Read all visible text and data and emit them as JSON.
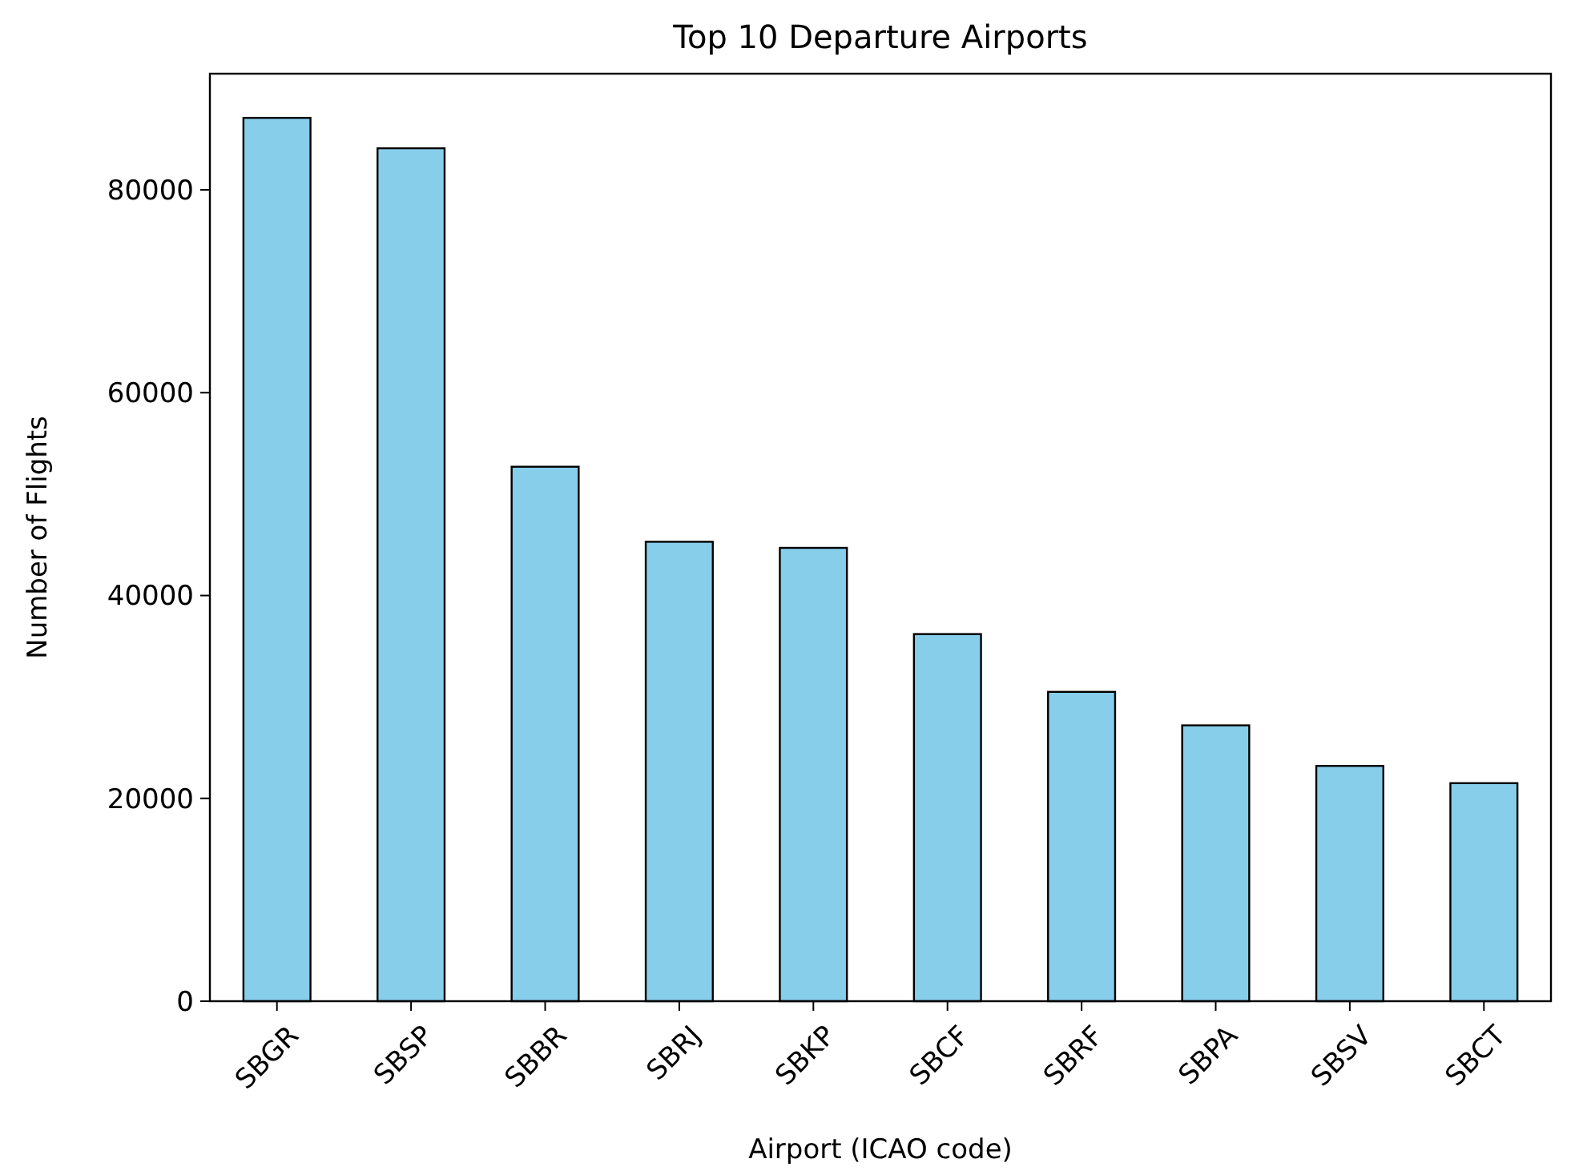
{
  "chart_data": {
    "type": "bar",
    "title": "Top 10 Departure Airports",
    "xlabel": "Airport (ICAO code)",
    "ylabel": "Number of Flights",
    "categories": [
      "SBGR",
      "SBSP",
      "SBBR",
      "SBRJ",
      "SBKP",
      "SBCF",
      "SBRF",
      "SBPA",
      "SBSV",
      "SBCT"
    ],
    "values": [
      87100,
      84100,
      52700,
      45300,
      44700,
      36200,
      30500,
      27200,
      23200,
      21500
    ],
    "color": "#87ceeb",
    "ylim": [
      0,
      91455
    ],
    "yticks": [
      0,
      20000,
      40000,
      60000,
      80000
    ],
    "grid": false
  }
}
